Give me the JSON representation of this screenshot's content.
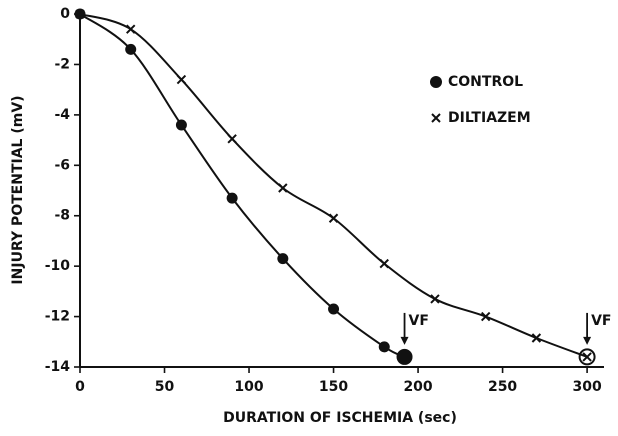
{
  "chart_data": {
    "type": "line",
    "x_label": "DURATION OF ISCHEMIA (sec)",
    "y_label": "INJURY POTENTIAL (mV)",
    "xlim": [
      0,
      310
    ],
    "ylim": [
      -14,
      0.2
    ],
    "xticks": [
      0,
      50,
      100,
      150,
      200,
      250,
      300
    ],
    "yticks": [
      0,
      -2,
      -4,
      -6,
      -8,
      -10,
      -12,
      -14
    ],
    "legend": "upper right",
    "annotations": [
      "VF",
      "VF"
    ],
    "series": [
      {
        "name": "CONTROL",
        "color": "#111111",
        "marker": "circle",
        "x": [
          0,
          30,
          60,
          90,
          120,
          150,
          180,
          192
        ],
        "values": [
          0,
          -1.4,
          -4.4,
          -7.3,
          -9.7,
          -11.7,
          -13.2,
          -13.6
        ]
      },
      {
        "name": "DILTIAZEM",
        "color": "#111111",
        "marker": "x",
        "x": [
          0,
          30,
          60,
          90,
          120,
          150,
          180,
          210,
          240,
          270,
          300
        ],
        "values": [
          0,
          -0.6,
          -2.6,
          -4.95,
          -6.9,
          -8.1,
          -9.9,
          -11.3,
          -12.0,
          -12.85,
          -13.6
        ]
      }
    ]
  }
}
